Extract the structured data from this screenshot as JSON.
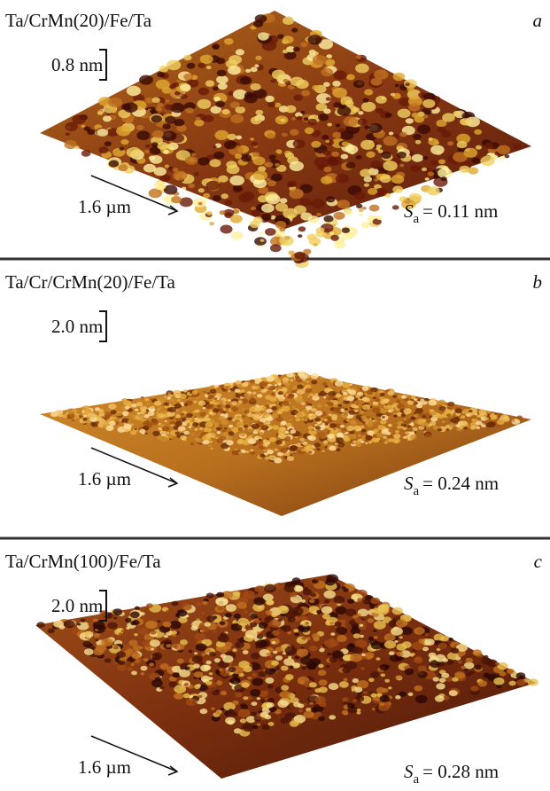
{
  "panels": [
    {
      "sample": "Ta/CrMn(20)/Fe/Ta",
      "letter": "a",
      "z_scale": "0.8 nm",
      "lateral_scale": "1.6 µm",
      "roughness_symbol": "S",
      "roughness_subscript": "a",
      "roughness_value": "= 0.11 nm"
    },
    {
      "sample": "Ta/Cr/CrMn(20)/Fe/Ta",
      "letter": "b",
      "z_scale": "2.0 nm",
      "lateral_scale": "1.6 µm",
      "roughness_symbol": "S",
      "roughness_subscript": "a",
      "roughness_value": "= 0.24 nm"
    },
    {
      "sample": "Ta/CrMn(100)/Fe/Ta",
      "letter": "c",
      "z_scale": "2.0 nm",
      "lateral_scale": "1.6 µm",
      "roughness_symbol": "S",
      "roughness_subscript": "a",
      "roughness_value": "= 0.28 nm"
    }
  ]
}
